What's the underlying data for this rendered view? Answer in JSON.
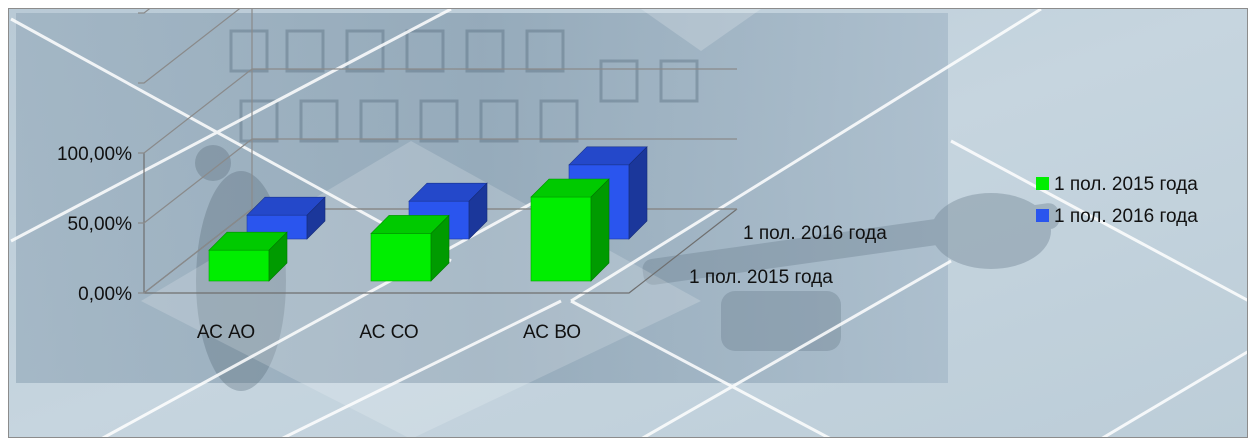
{
  "chart_data": {
    "type": "bar",
    "three_d": true,
    "categories": [
      "АС АО",
      "АС СО",
      "АС ВО"
    ],
    "series": [
      {
        "name": "1 пол. 2015 года",
        "color": "#00ee00",
        "values": [
          0.22,
          0.34,
          0.6
        ]
      },
      {
        "name": "1 пол. 2016 года",
        "color": "#2a55ee",
        "values": [
          0.17,
          0.27,
          0.53
        ]
      }
    ],
    "yticks": [
      "0,00%",
      "50,00%",
      "100,00%"
    ],
    "ylim": [
      0,
      1
    ],
    "depth_labels": [
      "1 пол. 2015 года",
      "1 пол. 2016 года"
    ],
    "grid": true,
    "legend_position": "right"
  }
}
